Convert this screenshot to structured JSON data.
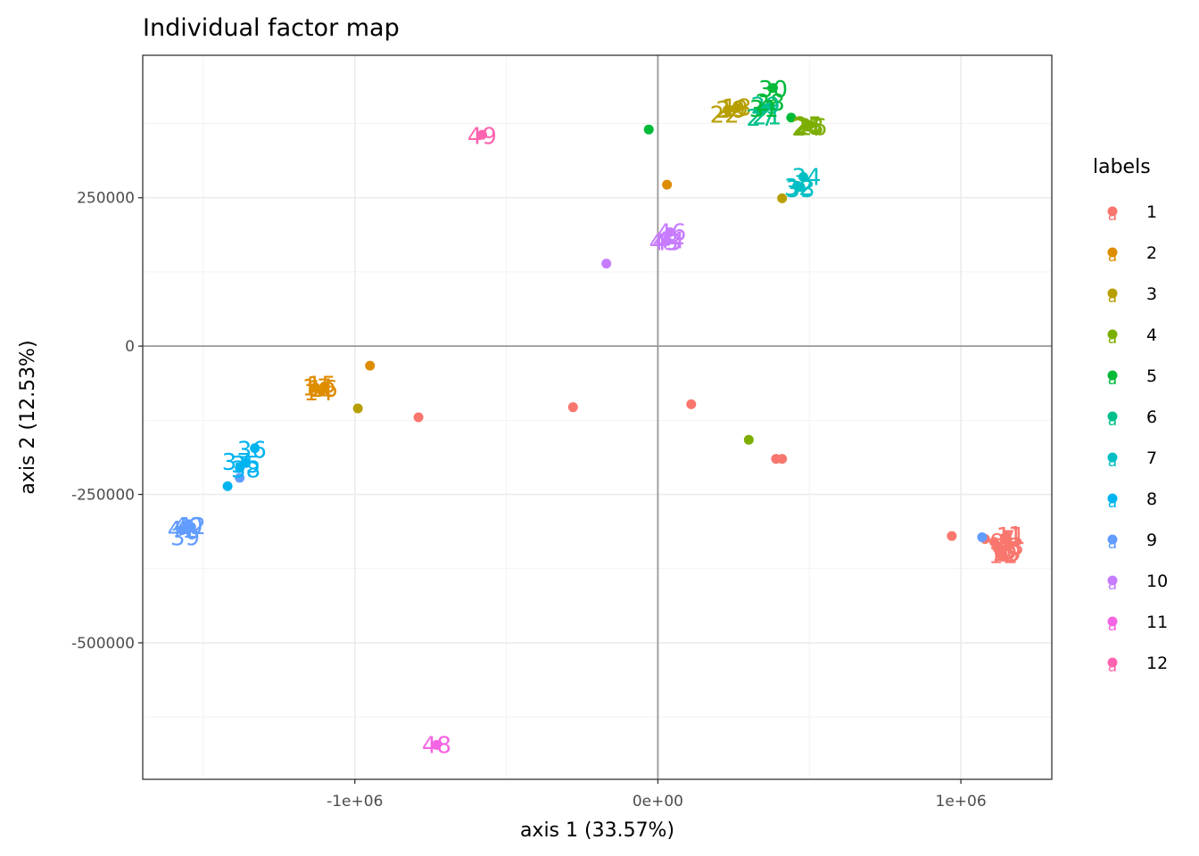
{
  "chart_data": {
    "type": "scatter",
    "title": "Individual factor map",
    "xlabel": "axis 1 (33.57%)",
    "ylabel": "axis 2 (12.53%)",
    "xlim": [
      -1700000,
      1300000
    ],
    "ylim": [
      -730000,
      490000
    ],
    "x_ticks": [
      -1000000,
      0,
      1000000
    ],
    "x_tick_labels": [
      "-1e+06",
      "0e+00",
      "1e+06"
    ],
    "y_ticks": [
      -500000,
      -250000,
      0,
      250000
    ],
    "y_tick_labels": [
      "-500000",
      "-250000",
      "0",
      "250000"
    ],
    "grid": true,
    "legend": {
      "title": "labels",
      "placement": "right",
      "key_glyph": "a",
      "entries": [
        {
          "label": "1",
          "color": "#F8766D"
        },
        {
          "label": "2",
          "color": "#DE8C00"
        },
        {
          "label": "3",
          "color": "#B79F00"
        },
        {
          "label": "4",
          "color": "#7CAE00"
        },
        {
          "label": "5",
          "color": "#00BA38"
        },
        {
          "label": "6",
          "color": "#00C08B"
        },
        {
          "label": "7",
          "color": "#00BFC4"
        },
        {
          "label": "8",
          "color": "#00B4F0"
        },
        {
          "label": "9",
          "color": "#619CFF"
        },
        {
          "label": "10",
          "color": "#C77CFF"
        },
        {
          "label": "11",
          "color": "#F564E3"
        },
        {
          "label": "12",
          "color": "#FF64B0"
        }
      ]
    },
    "points": [
      {
        "x": 1080000,
        "y": -325000,
        "g": 1
      },
      {
        "x": 1110000,
        "y": -330000,
        "g": 1
      },
      {
        "x": 1120000,
        "y": -340000,
        "g": 1
      },
      {
        "x": 1130000,
        "y": -350000,
        "g": 1
      },
      {
        "x": 1150000,
        "y": -320000,
        "g": 1
      },
      {
        "x": 1160000,
        "y": -335000,
        "g": 1
      },
      {
        "x": 1140000,
        "y": -355000,
        "g": 1
      },
      {
        "x": 970000,
        "y": -320000,
        "g": 1
      },
      {
        "x": -790000,
        "y": -120000,
        "g": 1
      },
      {
        "x": -280000,
        "y": -103000,
        "g": 1
      },
      {
        "x": 110000,
        "y": -98000,
        "g": 1
      },
      {
        "x": 390000,
        "y": -190000,
        "g": 1
      },
      {
        "x": 410000,
        "y": -190000,
        "g": 1
      },
      {
        "x": -1110000,
        "y": -75000,
        "g": 2
      },
      {
        "x": -1130000,
        "y": -70000,
        "g": 2
      },
      {
        "x": -1100000,
        "y": -68000,
        "g": 2
      },
      {
        "x": -950000,
        "y": -33000,
        "g": 2
      },
      {
        "x": 30000,
        "y": 272000,
        "g": 2
      },
      {
        "x": 230000,
        "y": 398000,
        "g": 3
      },
      {
        "x": 260000,
        "y": 401000,
        "g": 3
      },
      {
        "x": -990000,
        "y": -105000,
        "g": 3
      },
      {
        "x": 410000,
        "y": 249000,
        "g": 3
      },
      {
        "x": 490000,
        "y": 370000,
        "g": 4
      },
      {
        "x": 500000,
        "y": 372000,
        "g": 4
      },
      {
        "x": 300000,
        "y": -158000,
        "g": 4
      },
      {
        "x": 380000,
        "y": 435000,
        "g": 5
      },
      {
        "x": 440000,
        "y": 385000,
        "g": 5
      },
      {
        "x": -30000,
        "y": 365000,
        "g": 5
      },
      {
        "x": 340000,
        "y": 395000,
        "g": 5
      },
      {
        "x": 350000,
        "y": 400000,
        "g": 6
      },
      {
        "x": 370000,
        "y": 405000,
        "g": 6
      },
      {
        "x": 480000,
        "y": 285000,
        "g": 7
      },
      {
        "x": 460000,
        "y": 270000,
        "g": 7
      },
      {
        "x": 470000,
        "y": 268000,
        "g": 7
      },
      {
        "x": -1330000,
        "y": -172000,
        "g": 8
      },
      {
        "x": -1360000,
        "y": -197000,
        "g": 8
      },
      {
        "x": -1380000,
        "y": -205000,
        "g": 8
      },
      {
        "x": -1420000,
        "y": -236000,
        "g": 8
      },
      {
        "x": -1380000,
        "y": -222000,
        "g": 9
      },
      {
        "x": -1540000,
        "y": -305000,
        "g": 9
      },
      {
        "x": -1570000,
        "y": -310000,
        "g": 9
      },
      {
        "x": -1550000,
        "y": -300000,
        "g": 9
      },
      {
        "x": 1070000,
        "y": -322000,
        "g": 9
      },
      {
        "x": 40000,
        "y": 192000,
        "g": 10
      },
      {
        "x": 30000,
        "y": 177000,
        "g": 10
      },
      {
        "x": -170000,
        "y": 139000,
        "g": 10
      },
      {
        "x": -730000,
        "y": -672000,
        "g": 11
      },
      {
        "x": -580000,
        "y": 356000,
        "g": 12
      }
    ],
    "labels": [
      {
        "text": "1",
        "x": 1180000,
        "y": -318000,
        "g": 1
      },
      {
        "text": "2",
        "x": 1150000,
        "y": -330000,
        "g": 1
      },
      {
        "text": "3",
        "x": 1160000,
        "y": -345000,
        "g": 1
      },
      {
        "text": "4",
        "x": 1140000,
        "y": -335000,
        "g": 1
      },
      {
        "text": "5",
        "x": 1170000,
        "y": -350000,
        "g": 1
      },
      {
        "text": "6",
        "x": 1130000,
        "y": -345000,
        "g": 1
      },
      {
        "text": "7",
        "x": 1155000,
        "y": -325000,
        "g": 1
      },
      {
        "text": "8",
        "x": 1175000,
        "y": -338000,
        "g": 1
      },
      {
        "text": "9",
        "x": 1120000,
        "y": -330000,
        "g": 1
      },
      {
        "text": "10",
        "x": 1150000,
        "y": -348000,
        "g": 1
      },
      {
        "text": "11",
        "x": 1165000,
        "y": -320000,
        "g": 1
      },
      {
        "text": "12",
        "x": 1140000,
        "y": -352000,
        "g": 1
      },
      {
        "text": "13",
        "x": 1160000,
        "y": -338000,
        "g": 1
      },
      {
        "text": "14",
        "x": -1120000,
        "y": -78000,
        "g": 2
      },
      {
        "text": "15",
        "x": -1110000,
        "y": -65000,
        "g": 2
      },
      {
        "text": "16",
        "x": -1105000,
        "y": -72000,
        "g": 2
      },
      {
        "text": "17",
        "x": -1125000,
        "y": -70000,
        "g": 2
      },
      {
        "text": "18",
        "x": 260000,
        "y": 402000,
        "g": 3
      },
      {
        "text": "19",
        "x": 250000,
        "y": 400000,
        "g": 3
      },
      {
        "text": "20",
        "x": 240000,
        "y": 398000,
        "g": 3
      },
      {
        "text": "22",
        "x": 220000,
        "y": 390000,
        "g": 3
      },
      {
        "text": "21",
        "x": 360000,
        "y": 387000,
        "g": 6
      },
      {
        "text": "23",
        "x": 500000,
        "y": 370000,
        "g": 4
      },
      {
        "text": "24",
        "x": 490000,
        "y": 368000,
        "g": 4
      },
      {
        "text": "25",
        "x": 495000,
        "y": 372000,
        "g": 4
      },
      {
        "text": "26",
        "x": 510000,
        "y": 369000,
        "g": 4
      },
      {
        "text": "27",
        "x": 340000,
        "y": 385000,
        "g": 6
      },
      {
        "text": "28",
        "x": 370000,
        "y": 410000,
        "g": 5
      },
      {
        "text": "29",
        "x": 355000,
        "y": 405000,
        "g": 6
      },
      {
        "text": "30",
        "x": 380000,
        "y": 433000,
        "g": 5
      },
      {
        "text": "31",
        "x": 350000,
        "y": 400000,
        "g": 5
      },
      {
        "text": "32",
        "x": 465000,
        "y": 268000,
        "g": 7
      },
      {
        "text": "33",
        "x": 470000,
        "y": 265000,
        "g": 7
      },
      {
        "text": "34",
        "x": 490000,
        "y": 285000,
        "g": 7
      },
      {
        "text": "35",
        "x": -1360000,
        "y": -200000,
        "g": 8
      },
      {
        "text": "36",
        "x": -1340000,
        "y": -175000,
        "g": 8
      },
      {
        "text": "37",
        "x": -1390000,
        "y": -195000,
        "g": 8
      },
      {
        "text": "38",
        "x": -1360000,
        "y": -208000,
        "g": 8
      },
      {
        "text": "39",
        "x": -1560000,
        "y": -322000,
        "g": 9
      },
      {
        "text": "40",
        "x": -1550000,
        "y": -303000,
        "g": 9
      },
      {
        "text": "41",
        "x": -1570000,
        "y": -309000,
        "g": 9
      },
      {
        "text": "42",
        "x": -1540000,
        "y": -303000,
        "g": 9
      },
      {
        "text": "43",
        "x": 30000,
        "y": 175000,
        "g": 10
      },
      {
        "text": "44",
        "x": 40000,
        "y": 178000,
        "g": 10
      },
      {
        "text": "45",
        "x": 20000,
        "y": 175000,
        "g": 10
      },
      {
        "text": "46",
        "x": 45000,
        "y": 192000,
        "g": 10
      },
      {
        "text": "48",
        "x": -730000,
        "y": -672000,
        "g": 11
      },
      {
        "text": "49",
        "x": -580000,
        "y": 354000,
        "g": 12
      }
    ]
  }
}
